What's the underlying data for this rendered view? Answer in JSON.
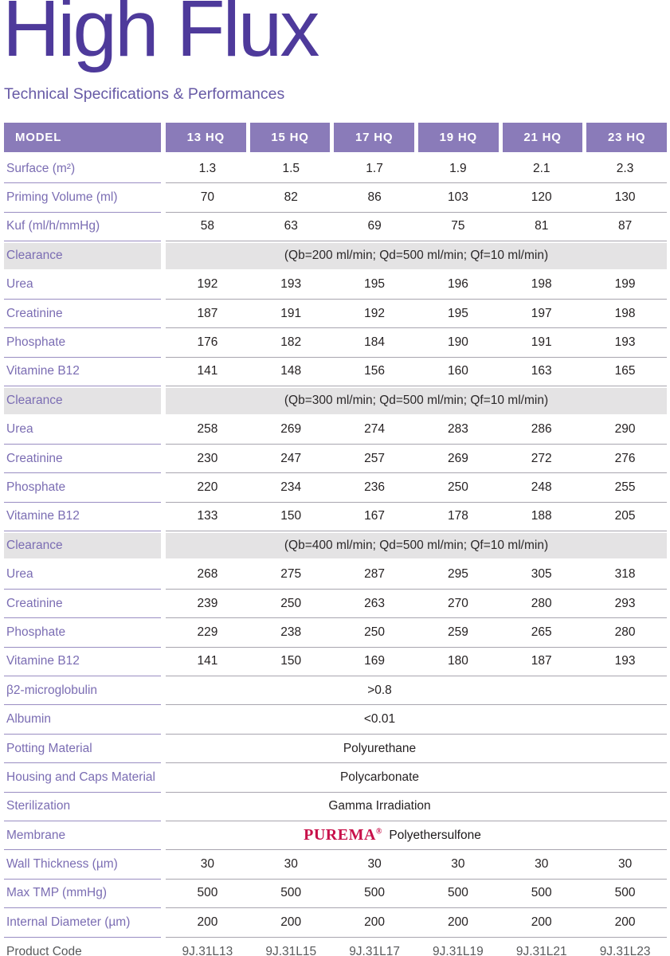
{
  "page": {
    "title": "High Flux",
    "subtitle": "Technical Specifications & Performances"
  },
  "colors": {
    "title_purple": "#4e3a9b",
    "header_band_purple": "#8a7bb9",
    "label_purple": "#7b6db3",
    "section_gray": "#e4e3e4",
    "logo_red": "#c8104a",
    "value_text": "#262223",
    "muted_text": "#58595b"
  },
  "table": {
    "header": {
      "model_label": "MODEL",
      "models": [
        "13 HQ",
        "15 HQ",
        "17 HQ",
        "19 HQ",
        "21 HQ",
        "23 HQ"
      ]
    },
    "rows": [
      {
        "type": "data",
        "label": "Surface (m²)",
        "values": [
          "1.3",
          "1.5",
          "1.7",
          "1.9",
          "2.1",
          "2.3"
        ]
      },
      {
        "type": "data",
        "label": "Priming Volume (ml)",
        "values": [
          "70",
          "82",
          "86",
          "103",
          "120",
          "130"
        ]
      },
      {
        "type": "data",
        "label": "Kuf (ml/h/mmHg)",
        "values": [
          "58",
          "63",
          "69",
          "75",
          "81",
          "87"
        ]
      },
      {
        "type": "section",
        "label": "Clearance",
        "value": "(Qb=200 ml/min; Qd=500 ml/min; Qf=10 ml/min)"
      },
      {
        "type": "data",
        "label": "Urea",
        "values": [
          "192",
          "193",
          "195",
          "196",
          "198",
          "199"
        ]
      },
      {
        "type": "data",
        "label": "Creatinine",
        "values": [
          "187",
          "191",
          "192",
          "195",
          "197",
          "198"
        ]
      },
      {
        "type": "data",
        "label": "Phosphate",
        "values": [
          "176",
          "182",
          "184",
          "190",
          "191",
          "193"
        ]
      },
      {
        "type": "data",
        "label": "Vitamine B12",
        "values": [
          "141",
          "148",
          "156",
          "160",
          "163",
          "165"
        ]
      },
      {
        "type": "section",
        "label": "Clearance",
        "value": "(Qb=300 ml/min; Qd=500 ml/min; Qf=10 ml/min)"
      },
      {
        "type": "data",
        "label": "Urea",
        "values": [
          "258",
          "269",
          "274",
          "283",
          "286",
          "290"
        ]
      },
      {
        "type": "data",
        "label": "Creatinine",
        "values": [
          "230",
          "247",
          "257",
          "269",
          "272",
          "276"
        ]
      },
      {
        "type": "data",
        "label": "Phosphate",
        "values": [
          "220",
          "234",
          "236",
          "250",
          "248",
          "255"
        ]
      },
      {
        "type": "data",
        "label": "Vitamine B12",
        "values": [
          "133",
          "150",
          "167",
          "178",
          "188",
          "205"
        ]
      },
      {
        "type": "section",
        "label": "Clearance",
        "value": "(Qb=400 ml/min; Qd=500 ml/min; Qf=10 ml/min)"
      },
      {
        "type": "data",
        "label": "Urea",
        "values": [
          "268",
          "275",
          "287",
          "295",
          "305",
          "318"
        ]
      },
      {
        "type": "data",
        "label": "Creatinine",
        "values": [
          "239",
          "250",
          "263",
          "270",
          "280",
          "293"
        ]
      },
      {
        "type": "data",
        "label": "Phosphate",
        "values": [
          "229",
          "238",
          "250",
          "259",
          "265",
          "280"
        ]
      },
      {
        "type": "data",
        "label": "Vitamine B12",
        "values": [
          "141",
          "150",
          "169",
          "180",
          "187",
          "193"
        ]
      },
      {
        "type": "span",
        "label": "β2-microglobulin",
        "value": ">0.8"
      },
      {
        "type": "span",
        "label": "Albumin",
        "value": "<0.01"
      },
      {
        "type": "span",
        "label": "Potting Material",
        "value": "Polyurethane"
      },
      {
        "type": "span",
        "label": "Housing and Caps Material",
        "value": "Polycarbonate"
      },
      {
        "type": "span",
        "label": "Sterilization",
        "value": "Gamma Irradiation"
      },
      {
        "type": "logo",
        "label": "Membrane",
        "logo": "PUREMA",
        "reg": "®",
        "value": "Polyethersulfone"
      },
      {
        "type": "data",
        "label": "Wall Thickness (µm)",
        "values": [
          "30",
          "30",
          "30",
          "30",
          "30",
          "30"
        ]
      },
      {
        "type": "data",
        "label": "Max TMP (mmHg)",
        "values": [
          "500",
          "500",
          "500",
          "500",
          "500",
          "500"
        ]
      },
      {
        "type": "data",
        "label": "Internal Diameter (µm)",
        "values": [
          "200",
          "200",
          "200",
          "200",
          "200",
          "200"
        ]
      },
      {
        "type": "data",
        "label": "Product Code",
        "muted": true,
        "last": true,
        "values": [
          "9J.31L13",
          "9J.31L15",
          "9J.31L17",
          "9J.31L19",
          "9J.31L21",
          "9J.31L23"
        ]
      }
    ]
  }
}
